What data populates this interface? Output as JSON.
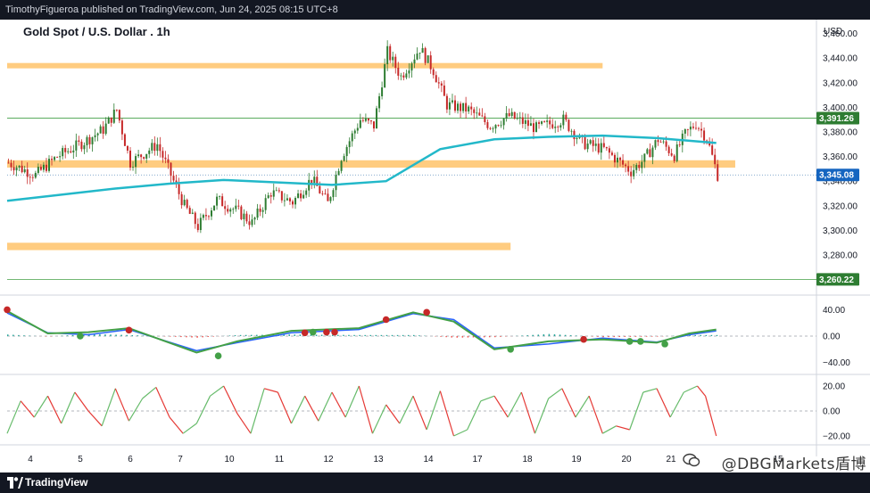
{
  "header": {
    "published_by": "TimothyFigueroa published on TradingView.com, Jun 24, 2025 08:15 UTC+8"
  },
  "footer": {
    "brand": "TradingView"
  },
  "watermark": {
    "text": "@DBGMarkets盾博"
  },
  "chart_data": [
    {
      "type": "candlestick",
      "title": "Gold Spot / U.S. Dollar . 1h",
      "currency": "USD",
      "y_ticks": [
        3280,
        3300,
        3320,
        3340,
        3360,
        3380,
        3400,
        3420,
        3440,
        3460
      ],
      "y_tick_labels": [
        "3,280.00",
        "3,300.00",
        "3,320.00",
        "3,340.00",
        "3,360.00",
        "3,380.00",
        "3,400.00",
        "3,420.00",
        "3,440.00",
        "3,460.00"
      ],
      "ylim": [
        3254,
        3464
      ],
      "x_labels": [
        "4",
        "5",
        "6",
        "7",
        "10",
        "11",
        "12",
        "13",
        "14",
        "17",
        "18",
        "19",
        "20",
        "21",
        "15"
      ],
      "bars": 300,
      "price_labels": [
        {
          "value": 3391.26,
          "text": "3,391.26"
        },
        {
          "value": 3345.08,
          "text": "3,345.08"
        },
        {
          "value": 3260.22,
          "text": "3,260.22"
        }
      ],
      "horizontal_lines": [
        3391.26,
        3260.22
      ],
      "support_resistance_zones": [
        {
          "low": 3432,
          "high": 3436,
          "start_bar": 0,
          "end_bar": 220
        },
        {
          "low": 3351,
          "high": 3357,
          "start_bar": 0,
          "end_bar": 269
        },
        {
          "low": 3284,
          "high": 3290,
          "start_bar": 0,
          "end_bar": 186
        }
      ],
      "moving_average_color": "#22b8c9",
      "up_color": "#2e7d32",
      "down_color": "#c62828",
      "zone_color": "#ffcc80",
      "moving_average": [
        {
          "bar": 0,
          "value": 3324
        },
        {
          "bar": 20,
          "value": 3329
        },
        {
          "bar": 40,
          "value": 3334
        },
        {
          "bar": 60,
          "value": 3338
        },
        {
          "bar": 80,
          "value": 3341
        },
        {
          "bar": 100,
          "value": 3339
        },
        {
          "bar": 120,
          "value": 3337
        },
        {
          "bar": 140,
          "value": 3340
        },
        {
          "bar": 160,
          "value": 3366
        },
        {
          "bar": 180,
          "value": 3374
        },
        {
          "bar": 200,
          "value": 3376
        },
        {
          "bar": 220,
          "value": 3377
        },
        {
          "bar": 240,
          "value": 3375
        },
        {
          "bar": 262,
          "value": 3371
        }
      ],
      "price_path": [
        {
          "bar": 0,
          "value": 3355
        },
        {
          "bar": 10,
          "value": 3345
        },
        {
          "bar": 18,
          "value": 3360
        },
        {
          "bar": 28,
          "value": 3372
        },
        {
          "bar": 35,
          "value": 3382
        },
        {
          "bar": 40,
          "value": 3398
        },
        {
          "bar": 45,
          "value": 3355
        },
        {
          "bar": 55,
          "value": 3370
        },
        {
          "bar": 60,
          "value": 3345
        },
        {
          "bar": 65,
          "value": 3320
        },
        {
          "bar": 70,
          "value": 3303
        },
        {
          "bar": 77,
          "value": 3325
        },
        {
          "bar": 85,
          "value": 3315
        },
        {
          "bar": 90,
          "value": 3306
        },
        {
          "bar": 97,
          "value": 3331
        },
        {
          "bar": 105,
          "value": 3323
        },
        {
          "bar": 112,
          "value": 3342
        },
        {
          "bar": 118,
          "value": 3322
        },
        {
          "bar": 123,
          "value": 3360
        },
        {
          "bar": 130,
          "value": 3390
        },
        {
          "bar": 135,
          "value": 3385
        },
        {
          "bar": 140,
          "value": 3445
        },
        {
          "bar": 145,
          "value": 3425
        },
        {
          "bar": 152,
          "value": 3448
        },
        {
          "bar": 157,
          "value": 3430
        },
        {
          "bar": 162,
          "value": 3402
        },
        {
          "bar": 170,
          "value": 3398
        },
        {
          "bar": 178,
          "value": 3385
        },
        {
          "bar": 185,
          "value": 3393
        },
        {
          "bar": 195,
          "value": 3383
        },
        {
          "bar": 205,
          "value": 3390
        },
        {
          "bar": 212,
          "value": 3371
        },
        {
          "bar": 220,
          "value": 3366
        },
        {
          "bar": 230,
          "value": 3348
        },
        {
          "bar": 235,
          "value": 3358
        },
        {
          "bar": 240,
          "value": 3374
        },
        {
          "bar": 246,
          "value": 3361
        },
        {
          "bar": 250,
          "value": 3378
        },
        {
          "bar": 254,
          "value": 3387
        },
        {
          "bar": 258,
          "value": 3375
        },
        {
          "bar": 262,
          "value": 3345
        }
      ]
    },
    {
      "type": "line",
      "title": "",
      "y_ticks": [
        40,
        0,
        -40
      ],
      "y_tick_labels": [
        "40.00",
        "0.00",
        "−40.00"
      ],
      "ylim": [
        -50,
        50
      ],
      "series": [
        {
          "color": "#2962ff",
          "points": [
            {
              "bar": 0,
              "value": 35
            },
            {
              "bar": 15,
              "value": 5
            },
            {
              "bar": 30,
              "value": 2
            },
            {
              "bar": 45,
              "value": 10
            },
            {
              "bar": 70,
              "value": -22
            },
            {
              "bar": 85,
              "value": -10
            },
            {
              "bar": 105,
              "value": 5
            },
            {
              "bar": 130,
              "value": 10
            },
            {
              "bar": 150,
              "value": 34
            },
            {
              "bar": 165,
              "value": 25
            },
            {
              "bar": 180,
              "value": -18
            },
            {
              "bar": 200,
              "value": -12
            },
            {
              "bar": 220,
              "value": -3
            },
            {
              "bar": 240,
              "value": -9
            },
            {
              "bar": 252,
              "value": 2
            },
            {
              "bar": 262,
              "value": 8
            }
          ]
        },
        {
          "color": "#43a047",
          "points": [
            {
              "bar": 0,
              "value": 38
            },
            {
              "bar": 15,
              "value": 4
            },
            {
              "bar": 30,
              "value": 6
            },
            {
              "bar": 45,
              "value": 12
            },
            {
              "bar": 70,
              "value": -25
            },
            {
              "bar": 85,
              "value": -8
            },
            {
              "bar": 105,
              "value": 8
            },
            {
              "bar": 130,
              "value": 12
            },
            {
              "bar": 150,
              "value": 36
            },
            {
              "bar": 165,
              "value": 22
            },
            {
              "bar": 180,
              "value": -20
            },
            {
              "bar": 200,
              "value": -8
            },
            {
              "bar": 220,
              "value": -5
            },
            {
              "bar": 240,
              "value": -10
            },
            {
              "bar": 252,
              "value": 4
            },
            {
              "bar": 262,
              "value": 10
            }
          ]
        }
      ],
      "cross_markers": [
        {
          "bar": 0,
          "value": 40,
          "color": "#c62828"
        },
        {
          "bar": 27,
          "value": 0,
          "color": "#43a047"
        },
        {
          "bar": 45,
          "value": 9,
          "color": "#c62828"
        },
        {
          "bar": 78,
          "value": -30,
          "color": "#43a047"
        },
        {
          "bar": 110,
          "value": 5,
          "color": "#c62828"
        },
        {
          "bar": 113,
          "value": 6,
          "color": "#43a047"
        },
        {
          "bar": 118,
          "value": 6,
          "color": "#c62828"
        },
        {
          "bar": 121,
          "value": 6,
          "color": "#c62828"
        },
        {
          "bar": 140,
          "value": 25,
          "color": "#c62828"
        },
        {
          "bar": 155,
          "value": 36,
          "color": "#c62828"
        },
        {
          "bar": 186,
          "value": -20,
          "color": "#43a047"
        },
        {
          "bar": 213,
          "value": -5,
          "color": "#c62828"
        },
        {
          "bar": 230,
          "value": -8,
          "color": "#43a047"
        },
        {
          "bar": 234,
          "value": -8,
          "color": "#43a047"
        },
        {
          "bar": 243,
          "value": -12,
          "color": "#43a047"
        }
      ]
    },
    {
      "type": "line",
      "title": "",
      "y_ticks": [
        20,
        0,
        -20
      ],
      "y_tick_labels": [
        "20.00",
        "0.00",
        "−20.00"
      ],
      "ylim": [
        -25,
        25
      ],
      "series": [
        {
          "color": "#66bb6a",
          "name": "",
          "points": [
            {
              "bar": 0,
              "value": -18
            },
            {
              "bar": 5,
              "value": 8
            },
            {
              "bar": 10,
              "value": -5
            },
            {
              "bar": 15,
              "value": 12
            },
            {
              "bar": 20,
              "value": -10
            },
            {
              "bar": 25,
              "value": 15
            },
            {
              "bar": 30,
              "value": 0
            },
            {
              "bar": 35,
              "value": -12
            },
            {
              "bar": 40,
              "value": 18
            },
            {
              "bar": 45,
              "value": -8
            },
            {
              "bar": 50,
              "value": 10
            },
            {
              "bar": 55,
              "value": 19
            },
            {
              "bar": 60,
              "value": -5
            },
            {
              "bar": 65,
              "value": -18
            },
            {
              "bar": 70,
              "value": -10
            },
            {
              "bar": 75,
              "value": 12
            },
            {
              "bar": 80,
              "value": 20
            },
            {
              "bar": 85,
              "value": -2
            },
            {
              "bar": 90,
              "value": -18
            },
            {
              "bar": 95,
              "value": 18
            },
            {
              "bar": 100,
              "value": 15
            },
            {
              "bar": 105,
              "value": -10
            },
            {
              "bar": 110,
              "value": 12
            },
            {
              "bar": 115,
              "value": -8
            },
            {
              "bar": 120,
              "value": 15
            },
            {
              "bar": 125,
              "value": -5
            },
            {
              "bar": 130,
              "value": 20
            },
            {
              "bar": 135,
              "value": -18
            },
            {
              "bar": 140,
              "value": 5
            },
            {
              "bar": 145,
              "value": -10
            },
            {
              "bar": 150,
              "value": 12
            },
            {
              "bar": 155,
              "value": -15
            },
            {
              "bar": 160,
              "value": 16
            },
            {
              "bar": 165,
              "value": -20
            },
            {
              "bar": 170,
              "value": -15
            },
            {
              "bar": 175,
              "value": 8
            },
            {
              "bar": 180,
              "value": 12
            },
            {
              "bar": 185,
              "value": -5
            },
            {
              "bar": 190,
              "value": 15
            },
            {
              "bar": 195,
              "value": -18
            },
            {
              "bar": 200,
              "value": 10
            },
            {
              "bar": 205,
              "value": 18
            },
            {
              "bar": 210,
              "value": -5
            },
            {
              "bar": 215,
              "value": 12
            },
            {
              "bar": 220,
              "value": -18
            },
            {
              "bar": 225,
              "value": -12
            },
            {
              "bar": 230,
              "value": -15
            },
            {
              "bar": 235,
              "value": 15
            },
            {
              "bar": 240,
              "value": 18
            },
            {
              "bar": 245,
              "value": -5
            },
            {
              "bar": 250,
              "value": 15
            },
            {
              "bar": 255,
              "value": 20
            },
            {
              "bar": 258,
              "value": 12
            },
            {
              "bar": 262,
              "value": -20
            }
          ]
        }
      ]
    }
  ]
}
